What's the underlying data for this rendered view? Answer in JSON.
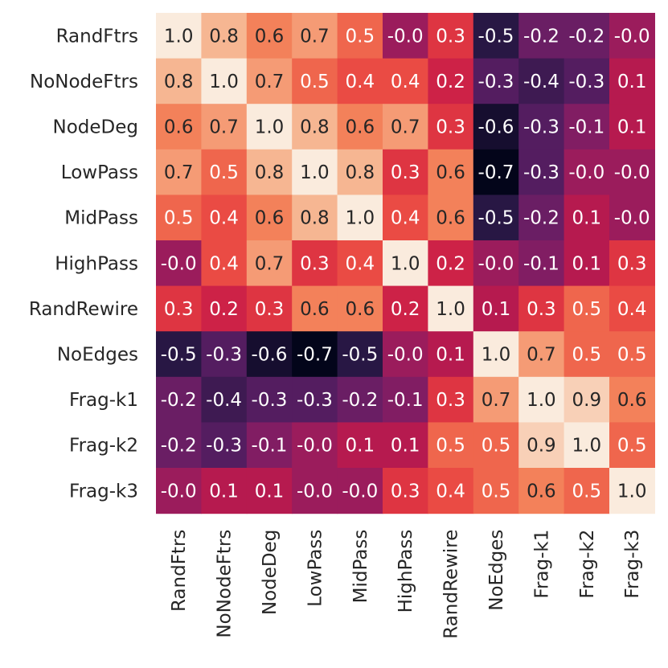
{
  "chart_data": {
    "type": "heatmap",
    "title": "",
    "xlabel": "",
    "ylabel": "",
    "colormap": "rocket",
    "vmin": -0.7,
    "vmax": 1.0,
    "row_labels": [
      "RandFtrs",
      "NoNodeFtrs",
      "NodeDeg",
      "LowPass",
      "MidPass",
      "HighPass",
      "RandRewire",
      "NoEdges",
      "Frag-k1",
      "Frag-k2",
      "Frag-k3"
    ],
    "col_labels": [
      "RandFtrs",
      "NoNodeFtrs",
      "NodeDeg",
      "LowPass",
      "MidPass",
      "HighPass",
      "RandRewire",
      "NoEdges",
      "Frag-k1",
      "Frag-k2",
      "Frag-k3"
    ],
    "values": [
      [
        1.0,
        0.8,
        0.6,
        0.7,
        0.5,
        -0.0,
        0.3,
        -0.5,
        -0.2,
        -0.2,
        -0.0
      ],
      [
        0.8,
        1.0,
        0.7,
        0.5,
        0.4,
        0.4,
        0.2,
        -0.3,
        -0.4,
        -0.3,
        0.1
      ],
      [
        0.6,
        0.7,
        1.0,
        0.8,
        0.6,
        0.7,
        0.3,
        -0.6,
        -0.3,
        -0.1,
        0.1
      ],
      [
        0.7,
        0.5,
        0.8,
        1.0,
        0.8,
        0.3,
        0.6,
        -0.7,
        -0.3,
        -0.0,
        -0.0
      ],
      [
        0.5,
        0.4,
        0.6,
        0.8,
        1.0,
        0.4,
        0.6,
        -0.5,
        -0.2,
        0.1,
        -0.0
      ],
      [
        -0.0,
        0.4,
        0.7,
        0.3,
        0.4,
        1.0,
        0.2,
        -0.0,
        -0.1,
        0.1,
        0.3
      ],
      [
        0.3,
        0.2,
        0.3,
        0.6,
        0.6,
        0.2,
        1.0,
        0.1,
        0.3,
        0.5,
        0.4
      ],
      [
        -0.5,
        -0.3,
        -0.6,
        -0.7,
        -0.5,
        -0.0,
        0.1,
        1.0,
        0.7,
        0.5,
        0.5
      ],
      [
        -0.2,
        -0.4,
        -0.3,
        -0.3,
        -0.2,
        -0.1,
        0.3,
        0.7,
        1.0,
        0.9,
        0.6
      ],
      [
        -0.2,
        -0.3,
        -0.1,
        -0.0,
        0.1,
        0.1,
        0.5,
        0.5,
        0.9,
        1.0,
        0.5
      ],
      [
        -0.0,
        0.1,
        0.1,
        -0.0,
        -0.0,
        0.3,
        0.4,
        0.5,
        0.6,
        0.5,
        1.0
      ]
    ],
    "cell_text": [
      [
        "1.0",
        "0.8",
        "0.6",
        "0.7",
        "0.5",
        "-0.0",
        "0.3",
        "-0.5",
        "-0.2",
        "-0.2",
        "-0.0"
      ],
      [
        "0.8",
        "1.0",
        "0.7",
        "0.5",
        "0.4",
        "0.4",
        "0.2",
        "-0.3",
        "-0.4",
        "-0.3",
        "0.1"
      ],
      [
        "0.6",
        "0.7",
        "1.0",
        "0.8",
        "0.6",
        "0.7",
        "0.3",
        "-0.6",
        "-0.3",
        "-0.1",
        "0.1"
      ],
      [
        "0.7",
        "0.5",
        "0.8",
        "1.0",
        "0.8",
        "0.3",
        "0.6",
        "-0.7",
        "-0.3",
        "-0.0",
        "-0.0"
      ],
      [
        "0.5",
        "0.4",
        "0.6",
        "0.8",
        "1.0",
        "0.4",
        "0.6",
        "-0.5",
        "-0.2",
        "0.1",
        "-0.0"
      ],
      [
        "-0.0",
        "0.4",
        "0.7",
        "0.3",
        "0.4",
        "1.0",
        "0.2",
        "-0.0",
        "-0.1",
        "0.1",
        "0.3"
      ],
      [
        "0.3",
        "0.2",
        "0.3",
        "0.6",
        "0.6",
        "0.2",
        "1.0",
        "0.1",
        "0.3",
        "0.5",
        "0.4"
      ],
      [
        "-0.5",
        "-0.3",
        "-0.6",
        "-0.7",
        "-0.5",
        "-0.0",
        "0.1",
        "1.0",
        "0.7",
        "0.5",
        "0.5"
      ],
      [
        "-0.2",
        "-0.4",
        "-0.3",
        "-0.3",
        "-0.2",
        "-0.1",
        "0.3",
        "0.7",
        "1.0",
        "0.9",
        "0.6"
      ],
      [
        "-0.2",
        "-0.3",
        "-0.1",
        "-0.0",
        "0.1",
        "0.1",
        "0.5",
        "0.5",
        "0.9",
        "1.0",
        "0.5"
      ],
      [
        "-0.0",
        "0.1",
        "0.1",
        "-0.0",
        "-0.0",
        "0.3",
        "0.4",
        "0.5",
        "0.6",
        "0.5",
        "1.0"
      ]
    ]
  },
  "colors": {
    "background": "#ffffff",
    "text_dark": "#262626",
    "cell_text_light": "#ffffff",
    "cell_text_dark": "#262626"
  }
}
